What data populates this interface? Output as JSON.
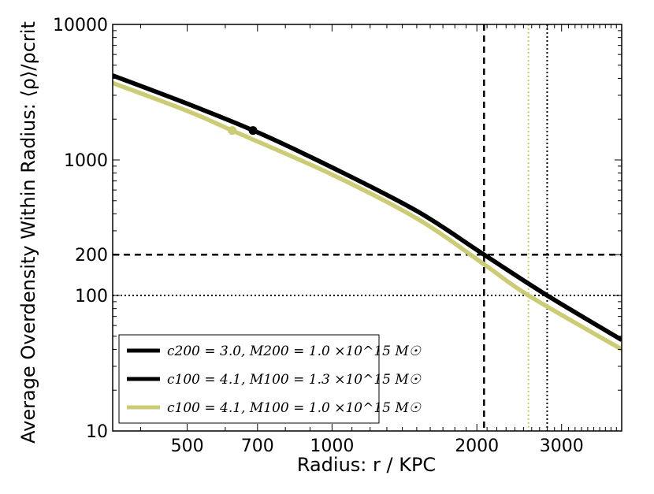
{
  "chart_data": {
    "type": "line",
    "xscale": "log",
    "yscale": "log",
    "xlim": [
      350,
      4000
    ],
    "ylim": [
      10,
      10000
    ],
    "xlabel": "Radius: r / KPC",
    "ylabel": "Average Overdensity Within Radius: ⟨ρ⟩/ρcrit",
    "x_ticks": [
      500,
      700,
      1000,
      2000,
      3000
    ],
    "x_tick_labels": [
      "500",
      "700",
      "1000",
      "2000",
      "3000"
    ],
    "y_ticks": [
      10,
      100,
      200,
      1000,
      10000
    ],
    "y_tick_labels": [
      "10",
      "100",
      "200",
      "1000",
      "10000"
    ],
    "legend_location": "lower-left",
    "series": [
      {
        "name": "c200=3.0, M200=1.0×10^15 M☉",
        "legend_label": "c200 = 3.0, M200 = 1.0 ×10^15 M☉",
        "color": "#000000",
        "points": [
          [
            350,
            4200
          ],
          [
            500,
            2600
          ],
          [
            700,
            1600
          ],
          [
            1000,
            880
          ],
          [
            1500,
            420
          ],
          [
            2070,
            200
          ],
          [
            2800,
            100
          ],
          [
            4000,
            47
          ]
        ],
        "marker": [
          685,
          1650
        ]
      },
      {
        "name": "c100=4.1, M100=1.3×10^15 M☉",
        "legend_label": "c100 = 4.1, M100 = 1.3 ×10^15 M☉",
        "color": "#000000",
        "points": [
          [
            350,
            4200
          ],
          [
            500,
            2600
          ],
          [
            700,
            1600
          ],
          [
            1000,
            880
          ],
          [
            1500,
            420
          ],
          [
            2070,
            200
          ],
          [
            2800,
            100
          ],
          [
            4000,
            47
          ]
        ]
      },
      {
        "name": "c100=4.1, M100=1.0×10^15 M☉",
        "legend_label": "c100 = 4.1, M100 = 1.0 ×10^15 M☉",
        "color": "#cccc77",
        "points": [
          [
            350,
            3700
          ],
          [
            500,
            2300
          ],
          [
            620,
            1650
          ],
          [
            1000,
            780
          ],
          [
            1500,
            370
          ],
          [
            2070,
            170
          ],
          [
            2560,
            100
          ],
          [
            4000,
            40
          ]
        ],
        "marker": [
          620,
          1650
        ]
      }
    ],
    "reference_lines": [
      {
        "orientation": "horizontal",
        "value": 200,
        "style": "dashed",
        "color": "#000000"
      },
      {
        "orientation": "horizontal",
        "value": 100,
        "style": "dotted",
        "color": "#000000"
      },
      {
        "orientation": "vertical",
        "value": 2070,
        "style": "dashed",
        "color": "#000000"
      },
      {
        "orientation": "vertical",
        "value": 2800,
        "style": "dotted",
        "color": "#000000"
      },
      {
        "orientation": "vertical",
        "value": 2560,
        "style": "dotted",
        "color": "#cccc77"
      }
    ]
  }
}
